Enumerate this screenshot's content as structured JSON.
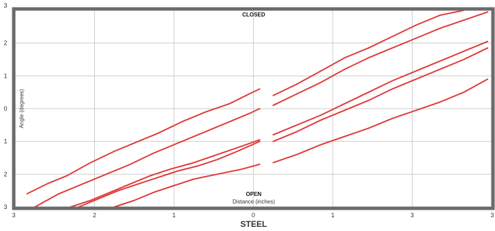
{
  "chart_data": {
    "type": "line",
    "title": "STEEL",
    "xlabel": "Distance (inches)",
    "ylabel": "Angle (degrees)",
    "annotations": {
      "top": "CLOSED",
      "bottom": "OPEN"
    },
    "x_tick_labels": [
      "3",
      "2",
      "1",
      "0",
      "1",
      "3",
      "3"
    ],
    "y_tick_labels": [
      "3",
      "2",
      "1",
      "0",
      "1",
      "2",
      "3"
    ],
    "xlim": [
      -3,
      3
    ],
    "ylim": [
      -3,
      3
    ],
    "grid": true,
    "colors": {
      "series": "#e03a3a",
      "frame": "#6b6b6b",
      "grid": "#cccccc"
    },
    "series": [
      {
        "segments": [
          [
            [
              -2.85,
              -2.6
            ],
            [
              -2.6,
              -2.3
            ],
            [
              -2.35,
              -2.05
            ],
            [
              -2.05,
              -1.65
            ],
            [
              -1.75,
              -1.3
            ],
            [
              -1.5,
              -1.05
            ],
            [
              -1.2,
              -0.75
            ],
            [
              -0.9,
              -0.4
            ],
            [
              -0.6,
              -0.1
            ],
            [
              -0.3,
              0.15
            ],
            [
              -0.05,
              0.45
            ],
            [
              0.08,
              0.6
            ]
          ],
          [
            [
              0.25,
              0.4
            ],
            [
              0.55,
              0.75
            ],
            [
              0.85,
              1.15
            ],
            [
              1.15,
              1.55
            ],
            [
              1.45,
              1.85
            ],
            [
              1.75,
              2.2
            ],
            [
              2.05,
              2.55
            ],
            [
              2.35,
              2.85
            ],
            [
              2.65,
              3.0
            ]
          ]
        ]
      },
      {
        "segments": [
          [
            [
              -2.75,
              -3.0
            ],
            [
              -2.45,
              -2.6
            ],
            [
              -2.15,
              -2.3
            ],
            [
              -1.85,
              -2.0
            ],
            [
              -1.55,
              -1.7
            ],
            [
              -1.25,
              -1.35
            ],
            [
              -0.95,
              -1.05
            ],
            [
              -0.65,
              -0.75
            ],
            [
              -0.35,
              -0.45
            ],
            [
              -0.05,
              -0.15
            ],
            [
              0.08,
              0.0
            ]
          ],
          [
            [
              0.25,
              0.1
            ],
            [
              0.55,
              0.45
            ],
            [
              0.85,
              0.8
            ],
            [
              1.15,
              1.2
            ],
            [
              1.45,
              1.55
            ],
            [
              1.75,
              1.85
            ],
            [
              2.05,
              2.15
            ],
            [
              2.35,
              2.45
            ],
            [
              2.65,
              2.7
            ],
            [
              2.95,
              2.95
            ]
          ]
        ]
      },
      {
        "segments": [
          [
            [
              -2.3,
              -3.0
            ],
            [
              -2.05,
              -2.8
            ],
            [
              -1.8,
              -2.55
            ],
            [
              -1.55,
              -2.3
            ],
            [
              -1.3,
              -2.05
            ],
            [
              -1.05,
              -1.85
            ],
            [
              -0.75,
              -1.65
            ],
            [
              -0.45,
              -1.4
            ],
            [
              -0.15,
              -1.15
            ],
            [
              0.08,
              -0.95
            ]
          ],
          [
            [
              0.25,
              -0.8
            ],
            [
              0.55,
              -0.5
            ],
            [
              0.85,
              -0.2
            ],
            [
              1.15,
              0.15
            ],
            [
              1.45,
              0.5
            ],
            [
              1.75,
              0.85
            ],
            [
              2.05,
              1.15
            ],
            [
              2.35,
              1.45
            ],
            [
              2.65,
              1.75
            ],
            [
              2.95,
              2.05
            ]
          ]
        ]
      },
      {
        "segments": [
          [
            [
              -2.2,
              -3.0
            ],
            [
              -1.95,
              -2.75
            ],
            [
              -1.7,
              -2.5
            ],
            [
              -1.45,
              -2.3
            ],
            [
              -1.2,
              -2.1
            ],
            [
              -0.95,
              -1.9
            ],
            [
              -0.7,
              -1.75
            ],
            [
              -0.45,
              -1.55
            ],
            [
              -0.2,
              -1.3
            ],
            [
              0.08,
              -1.0
            ]
          ],
          [
            [
              0.25,
              -1.0
            ],
            [
              0.55,
              -0.7
            ],
            [
              0.85,
              -0.35
            ],
            [
              1.15,
              -0.05
            ],
            [
              1.45,
              0.25
            ],
            [
              1.75,
              0.6
            ],
            [
              2.05,
              0.9
            ],
            [
              2.35,
              1.2
            ],
            [
              2.65,
              1.5
            ],
            [
              2.95,
              1.85
            ]
          ]
        ]
      },
      {
        "segments": [
          [
            [
              -1.75,
              -3.0
            ],
            [
              -1.5,
              -2.8
            ],
            [
              -1.25,
              -2.55
            ],
            [
              -1.0,
              -2.35
            ],
            [
              -0.75,
              -2.15
            ],
            [
              -0.45,
              -2.0
            ],
            [
              -0.15,
              -1.85
            ],
            [
              0.08,
              -1.7
            ]
          ],
          [
            [
              0.25,
              -1.65
            ],
            [
              0.55,
              -1.4
            ],
            [
              0.85,
              -1.1
            ],
            [
              1.15,
              -0.85
            ],
            [
              1.45,
              -0.6
            ],
            [
              1.75,
              -0.3
            ],
            [
              2.05,
              -0.05
            ],
            [
              2.35,
              0.2
            ],
            [
              2.65,
              0.5
            ],
            [
              2.95,
              0.9
            ]
          ]
        ]
      }
    ]
  }
}
